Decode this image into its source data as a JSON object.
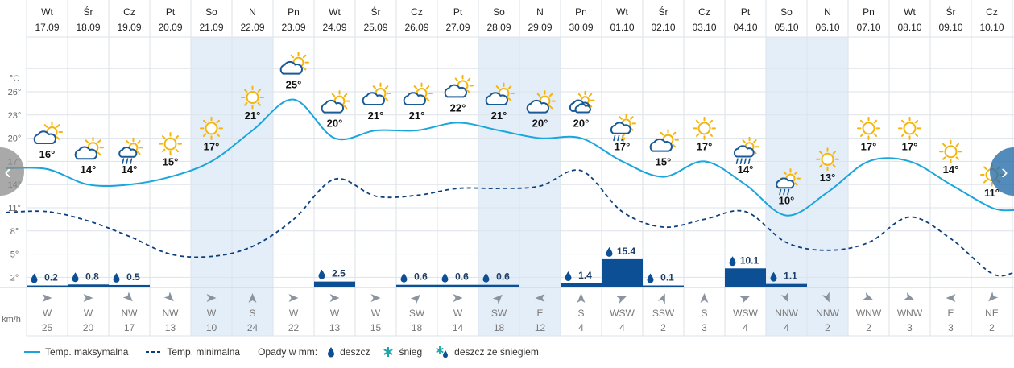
{
  "chart_data": {
    "type": "line",
    "days": [
      {
        "dow": "Wt",
        "date": "17.09",
        "max": 16,
        "min": 10.5,
        "precip": 0.2,
        "precip_label": "0.2",
        "wind_dir": "W",
        "wind_speed": "25",
        "weekend": false,
        "icon": "partly-cloudy-icon"
      },
      {
        "dow": "Śr",
        "date": "18.09",
        "max": 14,
        "min": 9.3,
        "precip": 0.8,
        "precip_label": "0.8",
        "wind_dir": "W",
        "wind_speed": "20",
        "weekend": false,
        "icon": "partly-cloudy-icon"
      },
      {
        "dow": "Cz",
        "date": "19.09",
        "max": 14,
        "min": 7.3,
        "precip": 0.5,
        "precip_label": "0.5",
        "wind_dir": "NW",
        "wind_speed": "17",
        "weekend": false,
        "icon": "sun-rain-icon"
      },
      {
        "dow": "Pt",
        "date": "20.09",
        "max": 15,
        "min": 5.0,
        "precip": 0,
        "precip_label": "",
        "wind_dir": "NW",
        "wind_speed": "13",
        "weekend": false,
        "icon": "sun-icon"
      },
      {
        "dow": "So",
        "date": "21.09",
        "max": 17,
        "min": 4.7,
        "precip": 0,
        "precip_label": "",
        "wind_dir": "W",
        "wind_speed": "10",
        "weekend": true,
        "icon": "sun-icon"
      },
      {
        "dow": "N",
        "date": "22.09",
        "max": 21,
        "min": 6.0,
        "precip": 0,
        "precip_label": "",
        "wind_dir": "S",
        "wind_speed": "24",
        "weekend": true,
        "icon": "sun-icon"
      },
      {
        "dow": "Pn",
        "date": "23.09",
        "max": 25,
        "min": 9.5,
        "precip": 0,
        "precip_label": "",
        "wind_dir": "W",
        "wind_speed": "22",
        "weekend": false,
        "icon": "partly-cloudy-icon"
      },
      {
        "dow": "Wt",
        "date": "24.09",
        "max": 20,
        "min": 14.7,
        "precip": 2.5,
        "precip_label": "2.5",
        "wind_dir": "W",
        "wind_speed": "13",
        "weekend": false,
        "icon": "partly-cloudy-icon"
      },
      {
        "dow": "Śr",
        "date": "25.09",
        "max": 21,
        "min": 12.5,
        "precip": 0,
        "precip_label": "",
        "wind_dir": "W",
        "wind_speed": "15",
        "weekend": false,
        "icon": "partly-cloudy-icon"
      },
      {
        "dow": "Cz",
        "date": "26.09",
        "max": 21,
        "min": 12.6,
        "precip": 0.6,
        "precip_label": "0.6",
        "wind_dir": "SW",
        "wind_speed": "18",
        "weekend": false,
        "icon": "partly-cloudy-icon"
      },
      {
        "dow": "Pt",
        "date": "27.09",
        "max": 22,
        "min": 13.5,
        "precip": 0.6,
        "precip_label": "0.6",
        "wind_dir": "W",
        "wind_speed": "14",
        "weekend": false,
        "icon": "partly-cloudy-icon"
      },
      {
        "dow": "So",
        "date": "28.09",
        "max": 21,
        "min": 13.5,
        "precip": 0.6,
        "precip_label": "0.6",
        "wind_dir": "SW",
        "wind_speed": "18",
        "weekend": true,
        "icon": "partly-cloudy-icon"
      },
      {
        "dow": "N",
        "date": "29.09",
        "max": 20,
        "min": 13.8,
        "precip": 0,
        "precip_label": "",
        "wind_dir": "E",
        "wind_speed": "12",
        "weekend": true,
        "icon": "partly-cloudy-icon"
      },
      {
        "dow": "Pn",
        "date": "30.09",
        "max": 20,
        "min": 15.8,
        "precip": 1.4,
        "precip_label": "1.4",
        "wind_dir": "S",
        "wind_speed": "4",
        "weekend": false,
        "icon": "cloudy-icon"
      },
      {
        "dow": "Wt",
        "date": "01.10",
        "max": 17,
        "min": 10.5,
        "precip": 15.4,
        "precip_label": "15.4",
        "wind_dir": "WSW",
        "wind_speed": "4",
        "weekend": false,
        "icon": "thunder-rain-icon"
      },
      {
        "dow": "Śr",
        "date": "02.10",
        "max": 15,
        "min": 8.5,
        "precip": 0.1,
        "precip_label": "0.1",
        "wind_dir": "SSW",
        "wind_speed": "2",
        "weekend": false,
        "icon": "partly-cloudy-icon"
      },
      {
        "dow": "Cz",
        "date": "03.10",
        "max": 17,
        "min": 9.5,
        "precip": 0,
        "precip_label": "",
        "wind_dir": "S",
        "wind_speed": "3",
        "weekend": false,
        "icon": "sun-icon"
      },
      {
        "dow": "Pt",
        "date": "04.10",
        "max": 14,
        "min": 10.5,
        "precip": 10.1,
        "precip_label": "10.1",
        "wind_dir": "WSW",
        "wind_speed": "4",
        "weekend": false,
        "icon": "heavy-rain-icon"
      },
      {
        "dow": "So",
        "date": "05.10",
        "max": 10,
        "min": 6.5,
        "precip": 1.1,
        "precip_label": "1.1",
        "wind_dir": "NNW",
        "wind_speed": "4",
        "weekend": true,
        "icon": "sun-rain-icon"
      },
      {
        "dow": "N",
        "date": "06.10",
        "max": 13,
        "min": 5.5,
        "precip": 0,
        "precip_label": "",
        "wind_dir": "NNW",
        "wind_speed": "2",
        "weekend": true,
        "icon": "sun-icon"
      },
      {
        "dow": "Pn",
        "date": "07.10",
        "max": 17,
        "min": 6.5,
        "precip": 0,
        "precip_label": "",
        "wind_dir": "WNW",
        "wind_speed": "2",
        "weekend": false,
        "icon": "sun-icon"
      },
      {
        "dow": "Wt",
        "date": "08.10",
        "max": 17,
        "min": 9.8,
        "precip": 0,
        "precip_label": "",
        "wind_dir": "WNW",
        "wind_speed": "3",
        "weekend": false,
        "icon": "sun-icon"
      },
      {
        "dow": "Śr",
        "date": "09.10",
        "max": 14,
        "min": 7.0,
        "precip": 0,
        "precip_label": "",
        "wind_dir": "E",
        "wind_speed": "3",
        "weekend": false,
        "icon": "sun-icon"
      },
      {
        "dow": "Cz",
        "date": "10.10",
        "max": 11,
        "min": 2.5,
        "precip": 0,
        "precip_label": "",
        "wind_dir": "NE",
        "wind_speed": "2",
        "weekend": false,
        "icon": "sun-icon"
      }
    ],
    "y_unit": "°C",
    "y_ticks": [
      2,
      5,
      8,
      11,
      14,
      17,
      20,
      23,
      26
    ],
    "ylim": [
      0,
      29
    ],
    "wind_unit": "km/h",
    "series": [
      {
        "name": "Temp. maksymalna",
        "key": "max"
      },
      {
        "name": "Temp. minimalna",
        "key": "min"
      }
    ],
    "grid": true,
    "legend_position": "bottom"
  },
  "legend": {
    "max_label": "Temp. maksymalna",
    "min_label": "Temp. minimalna",
    "precip_title": "Opady w mm:",
    "rain_label": "deszcz",
    "snow_label": "śnieg",
    "sleet_label": "deszcz ze śniegiem"
  },
  "nav": {
    "prev": "‹",
    "next": "›"
  },
  "colors": {
    "line": "#1aa6dc",
    "dashed": "#0b3f7e",
    "bar": "#0c4f95",
    "weekend": "#e4eef9",
    "grid": "#dde3ea",
    "sun": "#f5b50f",
    "cloud": "#1a5a96"
  }
}
